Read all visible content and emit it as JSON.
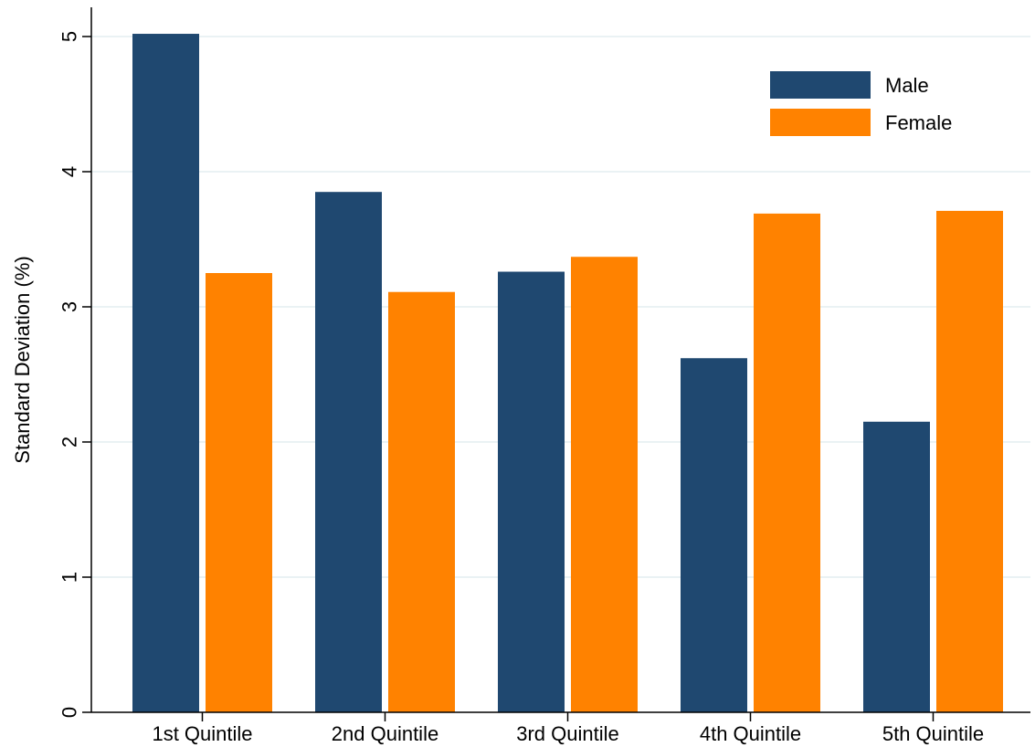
{
  "chart_data": {
    "type": "bar",
    "title": "",
    "xlabel": "",
    "ylabel": "Standard Deviation (%)",
    "ylim": [
      0,
      5.2
    ],
    "yticks": [
      0,
      1,
      2,
      3,
      4,
      5
    ],
    "categories": [
      "1st Quintile",
      "2nd Quintile",
      "3rd Quintile",
      "4th Quintile",
      "5th Quintile"
    ],
    "series": [
      {
        "name": "Male",
        "color": "#1f4870",
        "values": [
          5.02,
          3.85,
          3.26,
          2.62,
          2.15
        ]
      },
      {
        "name": "Female",
        "color": "#ff8200",
        "values": [
          3.25,
          3.11,
          3.37,
          3.69,
          3.71
        ]
      }
    ],
    "grid": true,
    "legend_position": "top-right"
  }
}
